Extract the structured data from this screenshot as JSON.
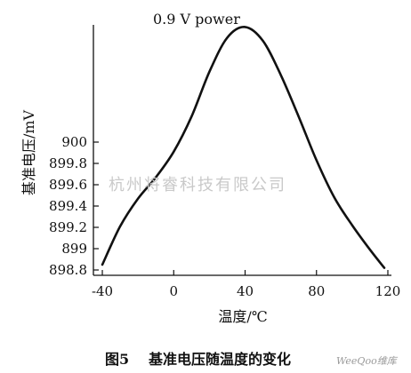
{
  "chart_data": {
    "type": "line",
    "title": "0.9 V power",
    "xlabel": "温度/℃",
    "ylabel": "基准电压/mV",
    "xlim": [
      -45,
      122
    ],
    "ylim": [
      898.75,
      901.1
    ],
    "x_ticks": [
      -40,
      0,
      40,
      80,
      120
    ],
    "x_tick_labels": [
      "-40",
      "0",
      "40",
      "80",
      "120"
    ],
    "y_ticks": [
      898.8,
      899,
      899.2,
      899.4,
      899.6,
      899.8,
      900
    ],
    "y_tick_labels": [
      "898.8",
      "899",
      "899.2",
      "899.4",
      "899.6",
      "899.8",
      "900"
    ],
    "grid": false,
    "series": [
      {
        "x": [
          -40,
          -30,
          -20,
          -10,
          0,
          10,
          20,
          30,
          40,
          50,
          60,
          70,
          80,
          90,
          100,
          110,
          118
        ],
        "y": [
          898.85,
          899.21,
          899.47,
          899.67,
          899.91,
          900.24,
          900.66,
          900.98,
          901.08,
          900.95,
          900.63,
          900.24,
          899.83,
          899.48,
          899.22,
          898.99,
          898.82
        ]
      }
    ]
  },
  "caption": {
    "figure_number": "图5",
    "text": "基准电压随温度的变化"
  },
  "watermark": "杭州将睿科技有限公司",
  "logo": "WeeQoo维库",
  "colors": {
    "line": "#111111",
    "axis": "#111111",
    "watermark": "#c9c9c9"
  }
}
